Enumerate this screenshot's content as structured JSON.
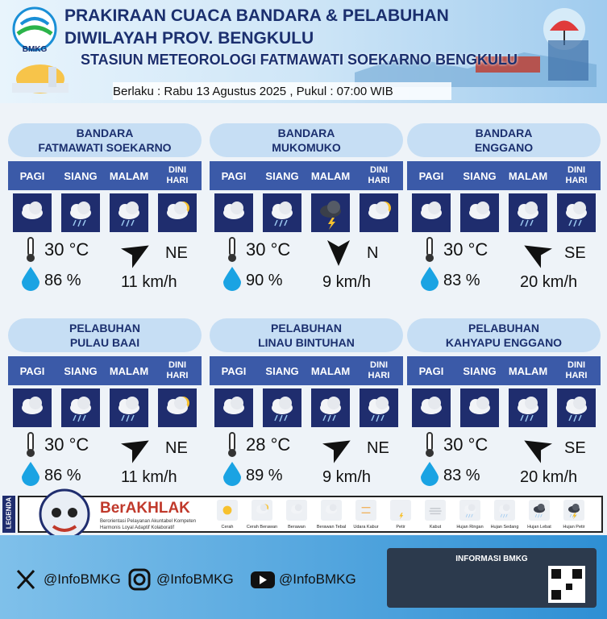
{
  "header": {
    "logo": "BMKG",
    "title": [
      "PRAKIRAAN CUACA BANDARA & PELABUHAN",
      "DIWILAYAH PROV. BENGKULU"
    ],
    "station": "STASIUN METEOROLOGI FATMAWATI SOEKARNO BENGKULU",
    "validity": "Berlaku : Rabu 13 Agustus 2025 , Pukul : 07:00 WIB"
  },
  "periods": [
    "PAGI",
    "SIANG",
    "MALAM",
    "DINI HARI"
  ],
  "locations": [
    {
      "type": "BANDARA",
      "name": "FATMAWATI SOEKARNO",
      "temperature": "30 °C",
      "humidity": "86 %",
      "wind_direction": "NE",
      "wind_speed": "11 km/h"
    },
    {
      "type": "BANDARA",
      "name": "MUKOMUKO",
      "temperature": "30 °C",
      "humidity": "90 %",
      "wind_direction": "N",
      "wind_speed": "9 km/h"
    },
    {
      "type": "BANDARA",
      "name": "ENGGANO",
      "temperature": "30 °C",
      "humidity": "83 %",
      "wind_direction": "SE",
      "wind_speed": "20 km/h"
    },
    {
      "type": "PELABUHAN",
      "name": "PULAU BAAI",
      "temperature": "30 °C",
      "humidity": "86 %",
      "wind_direction": "NE",
      "wind_speed": "11 km/h"
    },
    {
      "type": "PELABUHAN",
      "name": "LINAU BINTUHAN",
      "temperature": "28 °C",
      "humidity": "89 %",
      "wind_direction": "NE",
      "wind_speed": "9 km/h"
    },
    {
      "type": "PELABUHAN",
      "name": "KAHYAPU ENGGANO",
      "temperature": "30 °C",
      "humidity": "83 %",
      "wind_direction": "SE",
      "wind_speed": "20 km/h"
    }
  ],
  "legend": {
    "title": "LEGENDA",
    "brand": "BerAKHLAK",
    "tagline": "Berorientasi Pelayanan Akuntabel Kompeten Harmonis Loyal Adaptif Kolaboratif",
    "items": [
      "Cerah",
      "Cerah Berawan",
      "Berawan",
      "Berawan Tebal",
      "Udara Kabur",
      "Petir",
      "Kabut",
      "Hujan Ringan",
      "Hujan Sedang",
      "Hujan Lebat",
      "Hujan Petir"
    ]
  },
  "footer": {
    "social": [
      "@InfoBMKG",
      "@InfoBMKG",
      "@InfoBMKG"
    ],
    "info": "INFORMASI BMKG"
  }
}
